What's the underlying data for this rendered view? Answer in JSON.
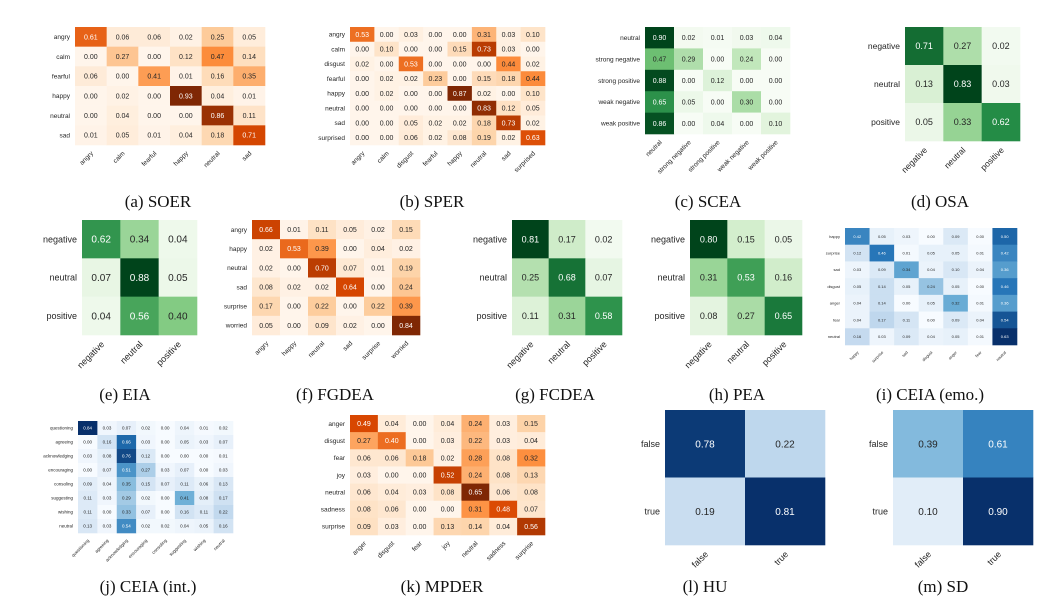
{
  "figure": {
    "background": "#ffffff"
  },
  "chart_data": [
    {
      "type": "heatmap",
      "caption": "(a) SOER",
      "cmap": "orange",
      "row_labels": [
        "angry",
        "calm",
        "fearful",
        "happy",
        "neutral",
        "sad"
      ],
      "col_labels": [
        "angry",
        "calm",
        "fearful",
        "happy",
        "neutral",
        "sad"
      ],
      "values": [
        [
          0.61,
          0.06,
          0.06,
          0.02,
          0.25,
          0.05
        ],
        [
          0.0,
          0.27,
          0.0,
          0.12,
          0.47,
          0.14
        ],
        [
          0.06,
          0.0,
          0.41,
          0.01,
          0.16,
          0.35
        ],
        [
          0.0,
          0.02,
          0.0,
          0.93,
          0.04,
          0.01
        ],
        [
          0.0,
          0.04,
          0.0,
          0.0,
          0.86,
          0.11
        ],
        [
          0.01,
          0.05,
          0.01,
          0.04,
          0.18,
          0.71
        ]
      ]
    },
    {
      "type": "heatmap",
      "caption": "(b) SPER",
      "cmap": "orange",
      "row_labels": [
        "angry",
        "calm",
        "disgust",
        "fearful",
        "happy",
        "neutral",
        "sad",
        "surprised"
      ],
      "col_labels": [
        "angry",
        "calm",
        "disgust",
        "fearful",
        "happy",
        "neutral",
        "sad",
        "surprised"
      ],
      "values": [
        [
          0.53,
          0.0,
          0.03,
          0.0,
          0.0,
          0.31,
          0.03,
          0.1
        ],
        [
          0.0,
          0.1,
          0.0,
          0.0,
          0.15,
          0.73,
          0.03,
          0.0
        ],
        [
          0.02,
          0.0,
          0.53,
          0.0,
          0.0,
          0.0,
          0.44,
          0.02
        ],
        [
          0.0,
          0.02,
          0.02,
          0.23,
          0.0,
          0.15,
          0.18,
          0.44
        ],
        [
          0.0,
          0.02,
          0.0,
          0.0,
          0.87,
          0.02,
          0.0,
          0.1
        ],
        [
          0.0,
          0.0,
          0.0,
          0.0,
          0.0,
          0.83,
          0.12,
          0.05
        ],
        [
          0.0,
          0.0,
          0.05,
          0.02,
          0.02,
          0.18,
          0.73,
          0.02
        ],
        [
          0.0,
          0.0,
          0.06,
          0.02,
          0.08,
          0.19,
          0.02,
          0.63
        ]
      ]
    },
    {
      "type": "heatmap",
      "caption": "(c) SCEA",
      "cmap": "green",
      "row_labels": [
        "neutral",
        "strong negative",
        "strong positive",
        "weak negative",
        "weak positive"
      ],
      "col_labels": [
        "neutral",
        "strong negative",
        "strong positive",
        "weak negative",
        "weak positive"
      ],
      "values": [
        [
          0.9,
          0.02,
          0.01,
          0.03,
          0.04
        ],
        [
          0.47,
          0.29,
          0.0,
          0.24,
          0.0
        ],
        [
          0.88,
          0.0,
          0.12,
          0.0,
          0.0
        ],
        [
          0.65,
          0.05,
          0.0,
          0.3,
          0.0
        ],
        [
          0.86,
          0.0,
          0.04,
          0.0,
          0.1
        ]
      ]
    },
    {
      "type": "heatmap",
      "caption": "(d) OSA",
      "cmap": "green",
      "row_labels": [
        "negative",
        "neutral",
        "positive"
      ],
      "col_labels": [
        "negative",
        "neutral",
        "positive"
      ],
      "values": [
        [
          0.71,
          0.27,
          0.02
        ],
        [
          0.13,
          0.83,
          0.03
        ],
        [
          0.05,
          0.33,
          0.62
        ]
      ]
    },
    {
      "type": "heatmap",
      "caption": "(e) EIA",
      "cmap": "green",
      "row_labels": [
        "negative",
        "neutral",
        "positive"
      ],
      "col_labels": [
        "negative",
        "neutral",
        "positive"
      ],
      "values": [
        [
          0.62,
          0.34,
          0.04
        ],
        [
          0.07,
          0.88,
          0.05
        ],
        [
          0.04,
          0.56,
          0.4
        ]
      ]
    },
    {
      "type": "heatmap",
      "caption": "(f) FGDEA",
      "cmap": "orange",
      "row_labels": [
        "angry",
        "happy",
        "neutral",
        "sad",
        "surprise",
        "worried"
      ],
      "col_labels": [
        "angry",
        "happy",
        "neutral",
        "sad",
        "surprise",
        "worried"
      ],
      "values": [
        [
          0.66,
          0.01,
          0.11,
          0.05,
          0.02,
          0.15
        ],
        [
          0.02,
          0.53,
          0.39,
          0.0,
          0.04,
          0.02
        ],
        [
          0.02,
          0.0,
          0.7,
          0.07,
          0.01,
          0.19
        ],
        [
          0.08,
          0.02,
          0.02,
          0.64,
          0.0,
          0.24
        ],
        [
          0.17,
          0.0,
          0.22,
          0.0,
          0.22,
          0.39
        ],
        [
          0.05,
          0.0,
          0.09,
          0.02,
          0.0,
          0.84
        ]
      ]
    },
    {
      "type": "heatmap",
      "caption": "(g) FCDEA",
      "cmap": "green",
      "row_labels": [
        "negative",
        "neutral",
        "positive"
      ],
      "col_labels": [
        "negative",
        "neutral",
        "positive"
      ],
      "values": [
        [
          0.81,
          0.17,
          0.02
        ],
        [
          0.25,
          0.68,
          0.07
        ],
        [
          0.11,
          0.31,
          0.58
        ]
      ]
    },
    {
      "type": "heatmap",
      "caption": "(h) PEA",
      "cmap": "green",
      "row_labels": [
        "negative",
        "neutral",
        "positive"
      ],
      "col_labels": [
        "negative",
        "neutral",
        "positive"
      ],
      "values": [
        [
          0.8,
          0.15,
          0.05
        ],
        [
          0.31,
          0.53,
          0.16
        ],
        [
          0.08,
          0.27,
          0.65
        ]
      ]
    },
    {
      "type": "heatmap",
      "caption": "(i) CEIA (emo.)",
      "cmap": "blue",
      "row_labels": [
        "happy",
        "surprise",
        "sad",
        "disgust",
        "anger",
        "fear",
        "neutral"
      ],
      "col_labels": [
        "happy",
        "surprise",
        "sad",
        "disgust",
        "anger",
        "fear",
        "neutral"
      ],
      "values": [
        [
          0.42,
          0.05,
          0.03,
          0.0,
          0.09,
          0.0,
          0.5
        ],
        [
          0.12,
          0.46,
          0.01,
          0.05,
          0.05,
          0.01,
          0.42
        ],
        [
          0.03,
          0.09,
          0.34,
          0.04,
          0.1,
          0.04,
          0.36
        ],
        [
          0.05,
          0.14,
          0.05,
          0.24,
          0.05,
          0.0,
          0.46
        ],
        [
          0.04,
          0.14,
          0.0,
          0.05,
          0.32,
          0.01,
          0.36
        ],
        [
          0.04,
          0.17,
          0.11,
          0.0,
          0.09,
          0.04,
          0.54
        ],
        [
          0.16,
          0.03,
          0.09,
          0.04,
          0.05,
          0.01,
          0.63
        ]
      ]
    },
    {
      "type": "heatmap",
      "caption": "(j) CEIA (int.)",
      "cmap": "blue",
      "row_labels": [
        "questioning",
        "agreeing",
        "acknowledging",
        "encouraging",
        "consoling",
        "suggesting",
        "wishing",
        "neutral"
      ],
      "col_labels": [
        "questioning",
        "agreeing",
        "acknowledging",
        "encouraging",
        "consoling",
        "suggesting",
        "wishing",
        "neutral"
      ],
      "values": [
        [
          0.84,
          0.03,
          0.07,
          0.02,
          0.0,
          0.04,
          0.01,
          0.02
        ],
        [
          0.0,
          0.16,
          0.66,
          0.03,
          0.0,
          0.05,
          0.03,
          0.07
        ],
        [
          0.03,
          0.08,
          0.76,
          0.12,
          0.0,
          0.0,
          0.0,
          0.01
        ],
        [
          0.0,
          0.07,
          0.51,
          0.27,
          0.03,
          0.07,
          0.0,
          0.03
        ],
        [
          0.09,
          0.04,
          0.35,
          0.15,
          0.07,
          0.11,
          0.06,
          0.13
        ],
        [
          0.11,
          0.03,
          0.29,
          0.02,
          0.0,
          0.41,
          0.08,
          0.17
        ],
        [
          0.11,
          0.0,
          0.33,
          0.07,
          0.0,
          0.16,
          0.11,
          0.22
        ],
        [
          0.13,
          0.03,
          0.54,
          0.02,
          0.02,
          0.04,
          0.05,
          0.16
        ]
      ]
    },
    {
      "type": "heatmap",
      "caption": "(k) MPDER",
      "cmap": "orange",
      "row_labels": [
        "anger",
        "disgust",
        "fear",
        "joy",
        "neutral",
        "sadness",
        "surprise"
      ],
      "col_labels": [
        "anger",
        "disgust",
        "fear",
        "joy",
        "neutral",
        "sadness",
        "surprise"
      ],
      "values": [
        [
          0.49,
          0.04,
          0.0,
          0.04,
          0.24,
          0.03,
          0.15
        ],
        [
          0.27,
          0.4,
          0.0,
          0.03,
          0.22,
          0.03,
          0.04
        ],
        [
          0.06,
          0.06,
          0.18,
          0.02,
          0.28,
          0.08,
          0.32
        ],
        [
          0.03,
          0.0,
          0.0,
          0.52,
          0.24,
          0.08,
          0.13
        ],
        [
          0.06,
          0.04,
          0.03,
          0.08,
          0.65,
          0.06,
          0.08
        ],
        [
          0.08,
          0.06,
          0.0,
          0.0,
          0.31,
          0.48,
          0.07
        ],
        [
          0.09,
          0.03,
          0.0,
          0.13,
          0.14,
          0.04,
          0.56
        ]
      ]
    },
    {
      "type": "heatmap",
      "caption": "(l) HU",
      "cmap": "blue",
      "row_labels": [
        "false",
        "true"
      ],
      "col_labels": [
        "false",
        "true"
      ],
      "values": [
        [
          0.78,
          0.22
        ],
        [
          0.19,
          0.81
        ]
      ]
    },
    {
      "type": "heatmap",
      "caption": "(m) SD",
      "cmap": "blue",
      "row_labels": [
        "false",
        "true"
      ],
      "col_labels": [
        "false",
        "true"
      ],
      "values": [
        [
          0.39,
          0.61
        ],
        [
          0.1,
          0.9
        ]
      ]
    }
  ],
  "colormaps": {
    "orange": [
      "#fff5eb",
      "#fdd0a2",
      "#fd8d3c",
      "#d94801",
      "#7f2704"
    ],
    "green": [
      "#f7fcf5",
      "#c7e9c0",
      "#74c476",
      "#238b45",
      "#00441b"
    ],
    "blue": [
      "#f7fbff",
      "#c6dbef",
      "#6baed6",
      "#2171b5",
      "#08306b"
    ]
  }
}
